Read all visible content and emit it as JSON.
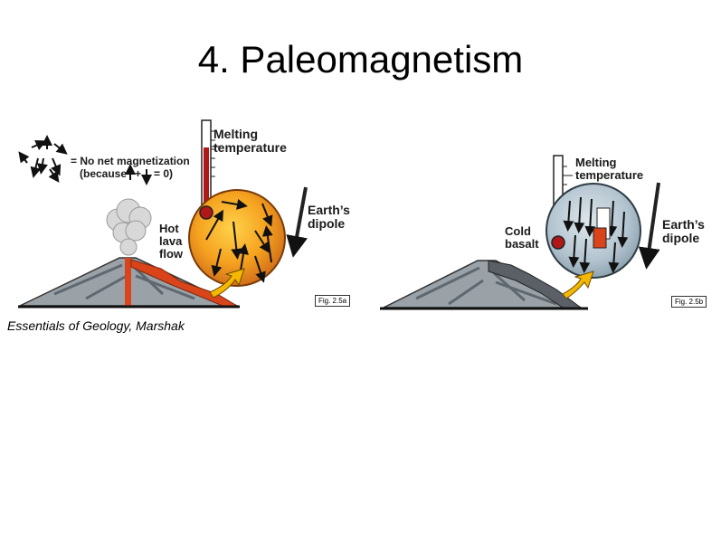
{
  "slide": {
    "title": "4. Paleomagnetism"
  },
  "left_panel": {
    "legend_line1": "= No net magnetization",
    "legend_line2a": "(because",
    "legend_plus": "+",
    "legend_line2b": "= 0)",
    "melting_line1": "Melting",
    "melting_line2": "temperature",
    "dipole_line1": "Earth’s",
    "dipole_line2": "dipole",
    "lava_line1": "Hot",
    "lava_line2": "lava",
    "lava_line3": "flow",
    "fig_tag": "Fig. 2.5a",
    "colors": {
      "hot_sphere": "#f0a020",
      "lava": "#d9441a",
      "thermo_red": "#b01818"
    }
  },
  "right_panel": {
    "melting_line1": "Melting",
    "melting_line2": "temperature",
    "dipole_line1": "Earth’s",
    "dipole_line2": "dipole",
    "basalt_line1": "Cold",
    "basalt_line2": "basalt",
    "fig_tag": "Fig. 2.5b",
    "colors": {
      "cold_sphere": "#b8ccd6",
      "arrow_yellow": "#f5b800"
    }
  },
  "caption": "Essentials of Geology, Marshak"
}
